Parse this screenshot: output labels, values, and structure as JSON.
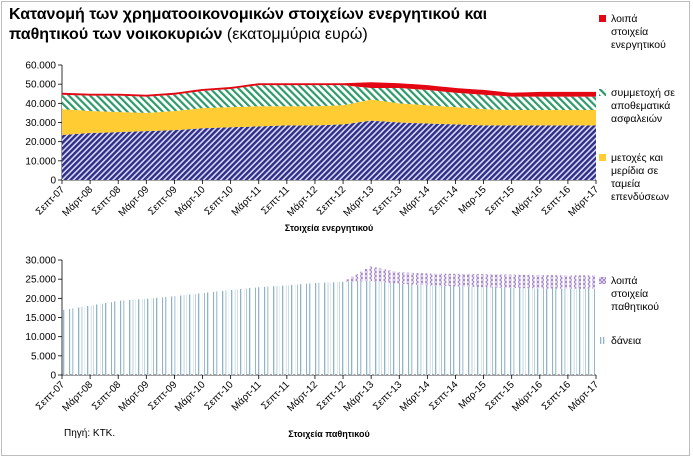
{
  "title": {
    "bold": "Κατανομή των χρηματοοικονομικών στοιχείων ενεργητικού και παθητικού των νοικοκυριών",
    "normal": "(εκατομμύρια ευρώ)"
  },
  "source": "Πηγή: ΚΤΚ.",
  "colors": {
    "loans": "#8fb4c8",
    "other_liab": "#9b7cc4",
    "deposits": "#2e2e8a",
    "funds": "#ffcc33",
    "insurance": "#2e9a6a",
    "other_assets": "#e30613"
  },
  "chart_data": [
    {
      "type": "area",
      "stacked": true,
      "xlabel": "Στοιχεία ενεργητικού",
      "ylim": [
        0,
        60000
      ],
      "yticks": [
        "0",
        "10.000",
        "20.000",
        "30.000",
        "40.000",
        "50.000",
        "60.000"
      ],
      "categories": [
        "Σεπτ-07",
        "Μάρτ-08",
        "Σεπτ-08",
        "Μάρτ-09",
        "Σεπτ-09",
        "Μάρτ-10",
        "Σεπτ-10",
        "Μάρτ-11",
        "Σεπτ-11",
        "Μάρτ-12",
        "Σεπτ-12",
        "Μάρτ-13",
        "Σεπτ-13",
        "Μάρτ-14",
        "Σεπτ-14",
        "Μαρ-15",
        "Σεπτ-15",
        "Μάρτ-16",
        "Σεπτ-16",
        "Μάρτ-17"
      ],
      "series": [
        {
          "label": "",
          "values": [
            23500,
            24500,
            25000,
            25500,
            26000,
            27000,
            27500,
            28000,
            28500,
            28500,
            29000,
            31000,
            30000,
            29500,
            29000,
            28500,
            28500,
            28500,
            28500,
            28500
          ]
        },
        {
          "label": "μετοχές και μερίδια σε ταμεία επενδύσεων",
          "values": [
            13500,
            11500,
            10500,
            9500,
            10000,
            10500,
            10500,
            10500,
            10000,
            10000,
            10000,
            11000,
            10000,
            9500,
            9000,
            8500,
            8000,
            8000,
            8000,
            8000
          ]
        },
        {
          "label": "συμμετοχή σε αποθεματικά ασφαλειών",
          "values": [
            7500,
            8000,
            8500,
            8500,
            8500,
            9000,
            9500,
            11000,
            11000,
            11000,
            10500,
            6000,
            8000,
            8000,
            7500,
            7500,
            7000,
            7000,
            7000,
            7000
          ]
        },
        {
          "label": "λοιπά στοιχεία ενεργητικού",
          "values": [
            1000,
            1000,
            1000,
            1000,
            1000,
            1000,
            1000,
            1000,
            1000,
            1000,
            1000,
            3000,
            2500,
            2500,
            2500,
            2500,
            2000,
            2500,
            2500,
            2500
          ]
        }
      ]
    },
    {
      "type": "bar",
      "stacked": true,
      "xlabel": "Στοιχεία παθητικού",
      "ylim": [
        0,
        30000
      ],
      "yticks": [
        "0",
        "5.000",
        "10.000",
        "15.000",
        "20.000",
        "25.000",
        "30.000"
      ],
      "categories": [
        "Σεπτ-07",
        "Μάρτ-08",
        "Σεπτ-08",
        "Μάρτ-09",
        "Σεπτ-09",
        "Μάρτ-10",
        "Σεπτ-10",
        "Μάρτ-11",
        "Σεπτ-11",
        "Μάρτ-12",
        "Σεπτ-12",
        "Μάρτ-13",
        "Σεπτ-13",
        "Μάρτ-14",
        "Σεπτ-14",
        "Μαρ-15",
        "Σεπτ-15",
        "Μάρτ-16",
        "Σεπτ-16",
        "Μάρτ-17"
      ],
      "series": [
        {
          "label": "δάνεια",
          "values": [
            17000,
            18200,
            19400,
            19900,
            20600,
            21400,
            22200,
            22900,
            23400,
            24000,
            24300,
            24500,
            23800,
            23400,
            23100,
            22900,
            22700,
            22600,
            22500,
            22500
          ]
        },
        {
          "label": "λοιπά στοιχεία παθητικού",
          "values": [
            0,
            0,
            0,
            0,
            0,
            0,
            0,
            0,
            0,
            0,
            0,
            3800,
            3000,
            3100,
            3300,
            3400,
            3500,
            3500,
            3500,
            3500
          ]
        }
      ]
    }
  ]
}
